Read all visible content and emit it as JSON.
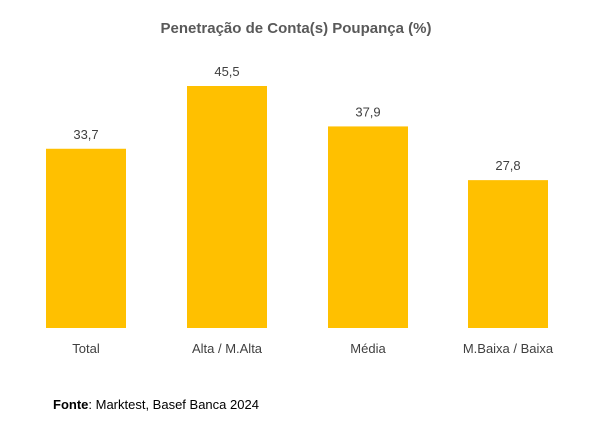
{
  "chart_data": {
    "type": "bar",
    "title": "Penetração de Conta(s) Poupança (%)",
    "categories": [
      "Total",
      "Alta / M.Alta",
      "Média",
      "M.Baixa / Baixa"
    ],
    "values": [
      33.7,
      45.5,
      37.9,
      27.8
    ],
    "value_labels": [
      "33,7",
      "45,5",
      "37,9",
      "27,8"
    ],
    "xlabel": "",
    "ylabel": "",
    "ylim": [
      0,
      45.5
    ],
    "grid": false,
    "legend": "none",
    "bar_color": "#FFC000"
  },
  "source": {
    "label": "Fonte",
    "text": ": Marktest, Basef Banca 2024"
  }
}
